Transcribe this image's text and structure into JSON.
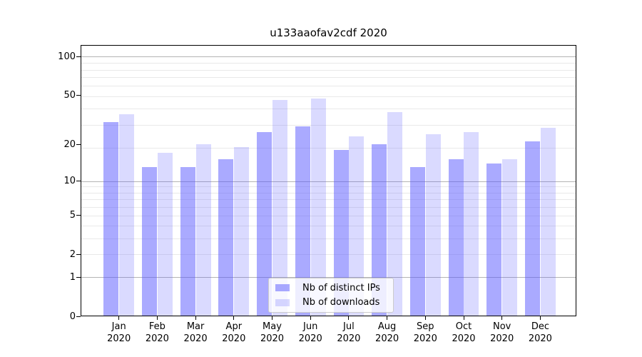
{
  "title": "u133aaofav2cdf 2020",
  "legend": {
    "items": [
      {
        "label": "Nb of distinct IPs",
        "color": "#aaaaff"
      },
      {
        "label": "Nb of downloads",
        "color": "#d9d9ff"
      }
    ]
  },
  "colors": {
    "bar_dark": "rgba(85,85,255,0.5)",
    "bar_light": "rgba(85,85,255,0.22)",
    "grid_minor": "#e9e9e9",
    "grid_major": "#b4b4b4",
    "spine": "#000000"
  },
  "chart_data": {
    "type": "bar",
    "title": "u133aaofav2cdf 2020",
    "xlabel": "",
    "ylabel": "",
    "yscale": "log1p",
    "ylim": [
      0,
      123
    ],
    "yticks": [
      0,
      1,
      2,
      5,
      10,
      20,
      50,
      100
    ],
    "major_gridlines": [
      1,
      10,
      100
    ],
    "minor_gridlines": [
      2,
      3,
      4,
      5,
      6,
      7,
      8,
      9,
      19,
      29,
      39,
      49,
      59,
      69,
      79,
      89
    ],
    "grid": true,
    "legend_position": "lower center",
    "categories": [
      "Jan",
      "Feb",
      "Mar",
      "Apr",
      "May",
      "Jun",
      "Jul",
      "Aug",
      "Sep",
      "Oct",
      "Nov",
      "Dec"
    ],
    "year": "2020",
    "series": [
      {
        "name": "Nb of distinct IPs",
        "color": "rgba(85,85,255,0.5)",
        "hex": "#aaaaff",
        "values": [
          30,
          13,
          13,
          15,
          25,
          28,
          18,
          20,
          13,
          15,
          14,
          21
        ]
      },
      {
        "name": "Nb of downloads",
        "color": "rgba(85,85,255,0.22)",
        "hex": "#d9d9ff",
        "values": [
          35,
          17,
          20,
          19,
          45,
          46,
          23,
          36,
          24,
          25,
          15,
          27
        ]
      }
    ]
  }
}
